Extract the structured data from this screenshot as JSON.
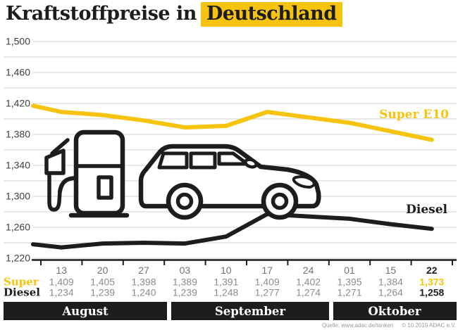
{
  "title": {
    "prefix": "Kraftstoffpreise in",
    "highlight": "Deutschland"
  },
  "colors": {
    "gold": "#F6C30E",
    "ink": "#1D1D1B",
    "grid": "#D0D0CE",
    "ylabel_gray": "#3E3E3C",
    "date_gray": "#71716F",
    "value_gray": "#8C8C8A",
    "source_gray": "#9B9B99"
  },
  "chart_data": {
    "type": "line",
    "title": "Kraftstoffpreise in Deutschland",
    "x_dates": [
      "13",
      "20",
      "27",
      "03",
      "10",
      "17",
      "24",
      "01",
      "15",
      "22"
    ],
    "months": [
      {
        "label": "August",
        "span": 3
      },
      {
        "label": "September",
        "span": 4
      },
      {
        "label": "Oktober",
        "span": 3
      }
    ],
    "y_axis": {
      "min": 1220,
      "max": 1500,
      "grid_step": 20,
      "label_step": 40
    },
    "grid": true,
    "legend_position": "right-on-lines",
    "series": [
      {
        "name": "Super",
        "legend": "Super E10",
        "color_key": "gold",
        "lead_in_value": 1417,
        "values": [
          1409,
          1405,
          1398,
          1389,
          1391,
          1409,
          1402,
          1395,
          1384,
          1373
        ]
      },
      {
        "name": "Diesel",
        "legend": "Diesel",
        "color_key": "ink",
        "lead_in_value": 1238,
        "values": [
          1234,
          1239,
          1240,
          1239,
          1248,
          1277,
          1274,
          1271,
          1264,
          1258
        ]
      }
    ],
    "value_format": "decimal_comma_3"
  },
  "icons": {
    "pump": "fuel-pump-icon",
    "car": "car-icon"
  },
  "source": {
    "quelle": "Quelle: www.adac.de/tanken",
    "copyright": "© 10.2019 ADAC e.V."
  }
}
